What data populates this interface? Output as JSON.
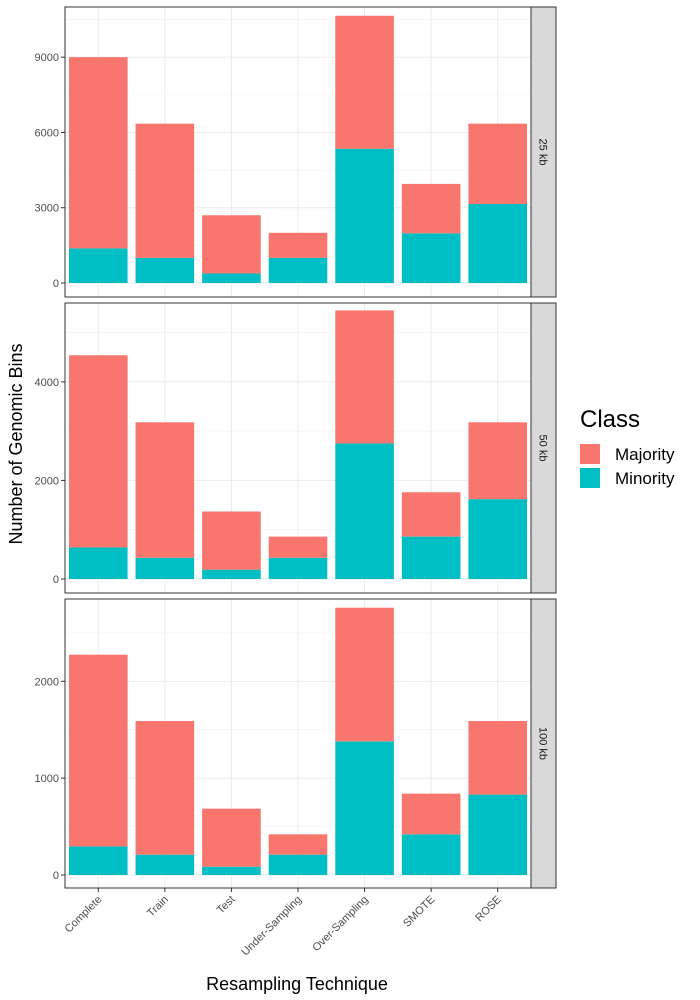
{
  "chart_data": {
    "type": "bar",
    "stacked": true,
    "xlabel": "Resampling Technique",
    "ylabel": "Number of Genomic Bins",
    "categories": [
      "Complete",
      "Train",
      "Test",
      "Under-Sampling",
      "Over-Sampling",
      "SMOTE",
      "ROSE"
    ],
    "legend": {
      "title": "Class",
      "position": "right",
      "entries": [
        {
          "name": "Majority",
          "color": "#F8766D"
        },
        {
          "name": "Minority",
          "color": "#00BFC4"
        }
      ]
    },
    "grid": true,
    "facets": [
      {
        "label": "25 kb",
        "ylim": [
          0,
          11000
        ],
        "yticks": [
          0,
          3000,
          6000,
          9000
        ],
        "series": [
          {
            "name": "Minority",
            "values": [
              1380,
              1000,
              380,
              1000,
              5350,
              1980,
              3150
            ]
          },
          {
            "name": "Majority",
            "values": [
              7620,
              5350,
              2320,
              1000,
              5300,
              1970,
              3200
            ]
          }
        ]
      },
      {
        "label": "50 kb",
        "ylim": [
          0,
          5600
        ],
        "yticks": [
          0,
          2000,
          4000
        ],
        "series": [
          {
            "name": "Minority",
            "values": [
              640,
              430,
              190,
              430,
              2750,
              860,
              1620
            ]
          },
          {
            "name": "Majority",
            "values": [
              3900,
              2750,
              1180,
              430,
              2700,
              900,
              1560
            ]
          }
        ]
      },
      {
        "label": "100 kb",
        "ylim": [
          0,
          2850
        ],
        "yticks": [
          0,
          1000,
          2000
        ],
        "series": [
          {
            "name": "Minority",
            "values": [
              295,
              210,
              85,
              210,
              1380,
              420,
              830
            ]
          },
          {
            "name": "Majority",
            "values": [
              1980,
              1380,
              600,
              210,
              1380,
              420,
              760
            ]
          }
        ]
      }
    ]
  }
}
